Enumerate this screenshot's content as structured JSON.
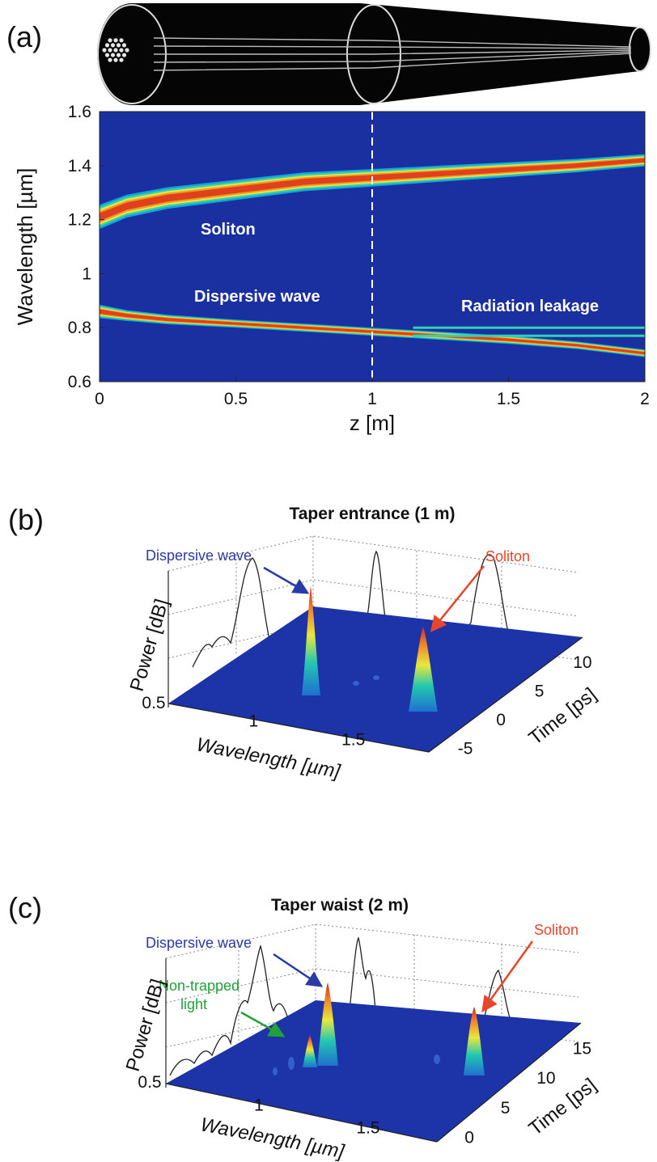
{
  "panels": {
    "a": {
      "label": "(a)",
      "chart_data": {
        "type": "heatmap",
        "xlabel": "z [m]",
        "ylabel": "Wavelength [µm]",
        "xlim": [
          0,
          2
        ],
        "ylim": [
          0.6,
          1.6
        ],
        "x_ticks": [
          "0",
          "0.5",
          "1",
          "1.5",
          "2"
        ],
        "y_ticks": [
          "0.6",
          "0.8",
          "1",
          "1.2",
          "1.4",
          "1.6"
        ],
        "vline_z": 1,
        "background_color": "#1a2fa0",
        "bands": [
          {
            "name": "soliton",
            "z": [
              0,
              0.1,
              0.25,
              0.5,
              0.75,
              1.0,
              1.25,
              1.5,
              1.75,
              2.0
            ],
            "center": [
              1.21,
              1.25,
              1.28,
              1.31,
              1.34,
              1.355,
              1.37,
              1.385,
              1.4,
              1.42
            ],
            "width": [
              0.09,
              0.085,
              0.08,
              0.075,
              0.07,
              0.065,
              0.06,
              0.055,
              0.05,
              0.045
            ]
          },
          {
            "name": "dispersive",
            "z": [
              0,
              0.1,
              0.25,
              0.5,
              0.75,
              1.0,
              1.25,
              1.5,
              1.75,
              2.0
            ],
            "center": [
              0.86,
              0.845,
              0.83,
              0.815,
              0.8,
              0.785,
              0.77,
              0.755,
              0.735,
              0.705
            ],
            "width": [
              0.05,
              0.04,
              0.035,
              0.03,
              0.03,
              0.03,
              0.03,
              0.03,
              0.028,
              0.028
            ]
          }
        ],
        "leakage_lines": [
          0.8,
          0.77
        ]
      },
      "annotations": {
        "soliton": "Soliton",
        "dispersive": "Dispersive wave",
        "leakage": "Radiation leakage"
      }
    },
    "b": {
      "label": "(b)",
      "title": "Taper entrance (1 m)",
      "chart_data": {
        "type": "surface",
        "xlabel": "Wavelength [µm]",
        "ylabel": "Time [ps]",
        "zlabel": "Power [dB]",
        "x_ticks": [
          "0.5",
          "1",
          "1.5"
        ],
        "y_ticks": [
          "-5",
          "0",
          "5",
          "10"
        ]
      },
      "annotations": {
        "dispersive": "Dispersive wave",
        "soliton": "Soliton"
      }
    },
    "c": {
      "label": "(c)",
      "title": "Taper waist (2 m)",
      "chart_data": {
        "type": "surface",
        "xlabel": "Wavelength [µm]",
        "ylabel": "Time [ps]",
        "zlabel": "Power [dB]",
        "x_ticks": [
          "0.5",
          "1",
          "1.5"
        ],
        "y_ticks": [
          "0",
          "5",
          "10",
          "15"
        ]
      },
      "annotations": {
        "dispersive": "Dispersive wave",
        "nontrapped_1": "Non-trapped",
        "nontrapped_2": "light",
        "soliton": "Soliton"
      }
    }
  },
  "colors": {
    "map_background": "#1a2fa0",
    "floor": "#1c34a8",
    "dispersive_label": "#2a3aa8",
    "soliton_label": "#e8452a",
    "nontrapped_label": "#22a03a"
  }
}
